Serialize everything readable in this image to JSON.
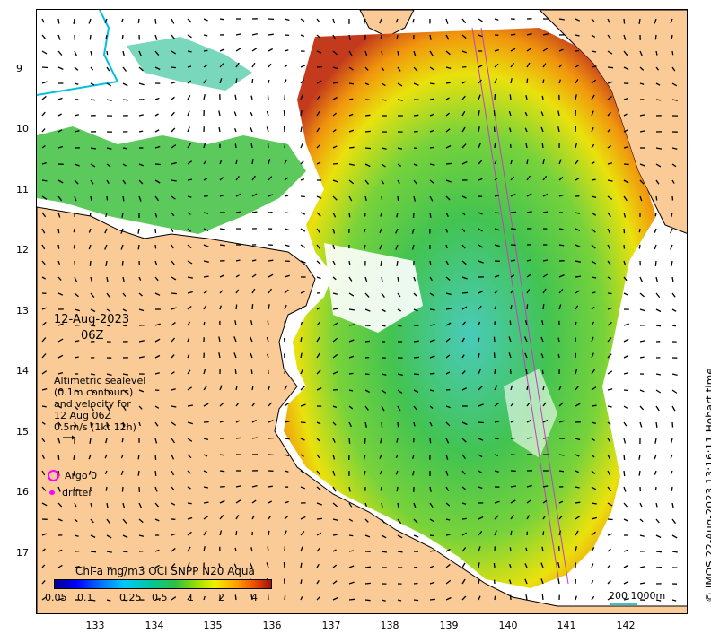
{
  "map": {
    "y_axis_labels": [
      "9",
      "10",
      "11",
      "12",
      "13",
      "14",
      "15",
      "16",
      "17"
    ],
    "x_axis_labels": [
      "133",
      "134",
      "135",
      "136",
      "137",
      "138",
      "139",
      "140",
      "141",
      "142"
    ],
    "date_line1": "12-Aug-2023",
    "date_line2": "06Z",
    "altimetric": {
      "line1": "Altimetric sealevel",
      "line2": "(0.1m contours)",
      "line3": "and velocity for",
      "line4": "12 Aug 06Z",
      "line5": "0.5m/s (1kt 12h)"
    },
    "legend": {
      "argo": "Argo 0",
      "drifter": "drifter"
    },
    "colorbar": {
      "title": "Chl-a mg/m3 OCi SNPP N20 Aqua",
      "ticks": [
        "0.05",
        "0.1",
        "0.25",
        "0.5",
        "1",
        "2",
        "4"
      ]
    },
    "scale_label": "200  1000m",
    "credit": "© IMOS 22-Aug-2023 13:16:11 Hobart time",
    "colors": {
      "land": "#facb96",
      "coast": "#000000",
      "cyan": "#38c8c0",
      "green": "#38c838",
      "lime": "#90d828",
      "yellow": "#f0e000",
      "orange": "#f08000",
      "red": "#c03010",
      "track": "#c040c0",
      "argo": "#ff00ff"
    }
  }
}
